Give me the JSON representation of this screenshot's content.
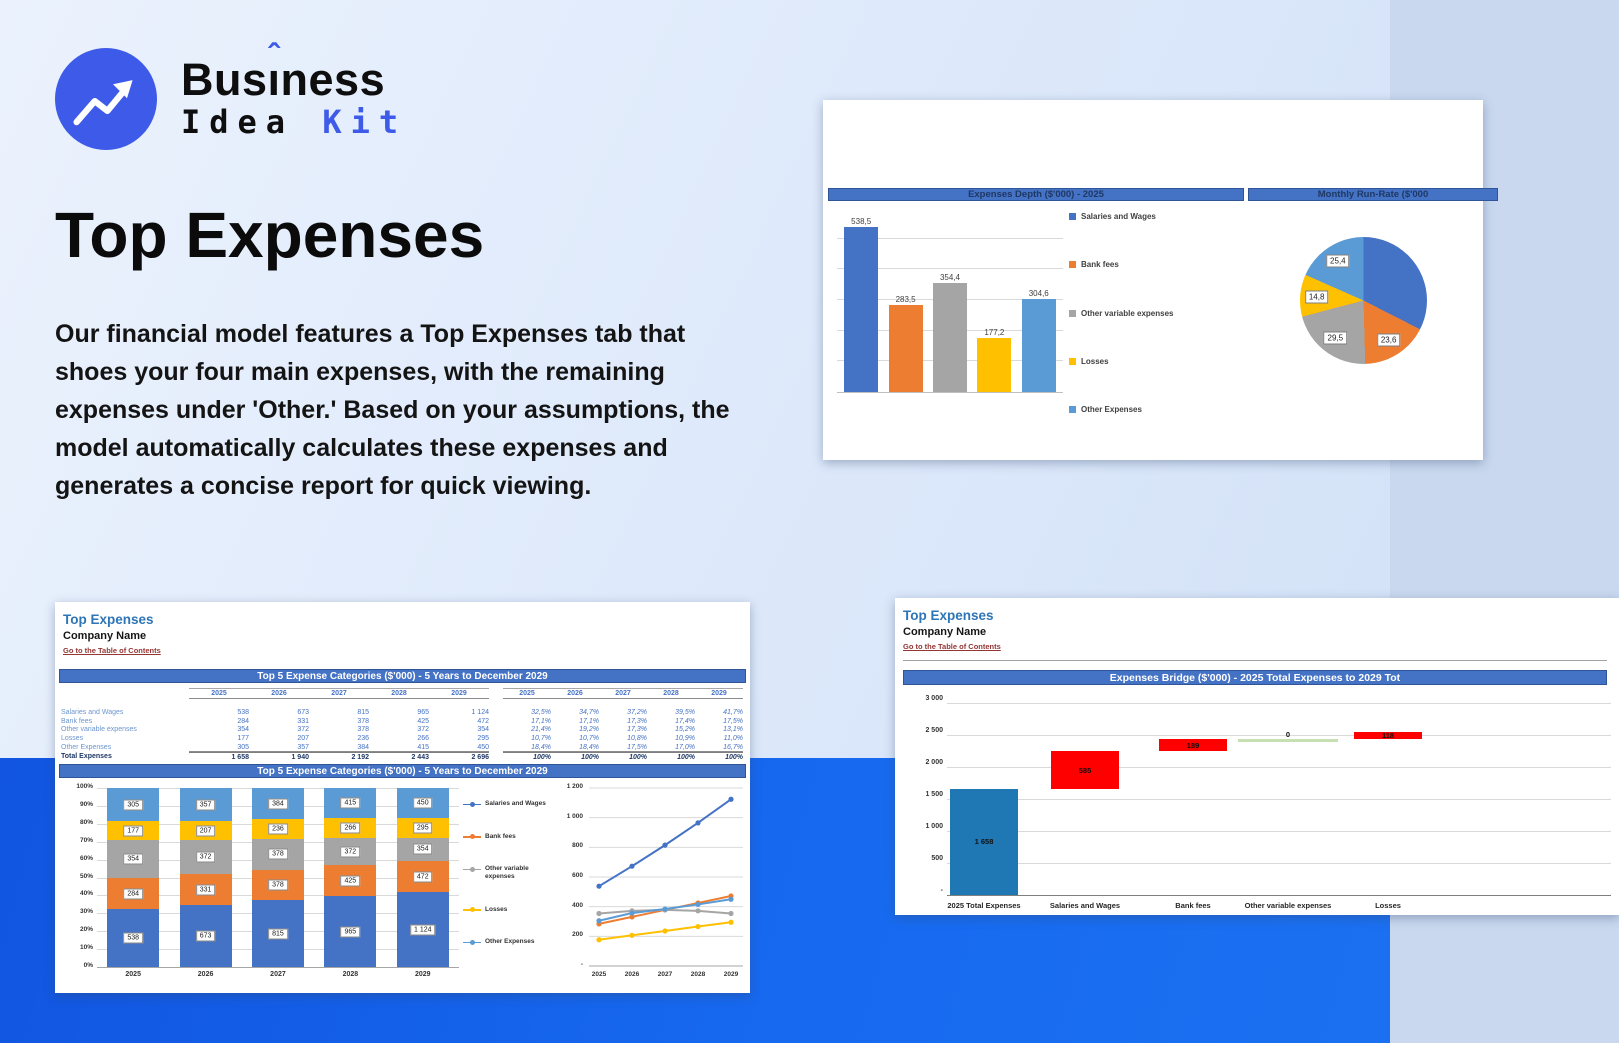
{
  "brand": {
    "part1": "Bus",
    "i_base": "ı",
    "caret": "ˆ",
    "part2": "ness",
    "line2_word1": "Idea ",
    "line2_word2": "Kit"
  },
  "hero": {
    "title": "Top Expenses",
    "paragraph": "Our financial model features a Top Expenses tab that shoes your four main expenses, with the remaining expenses under 'Other.' Based on your assumptions, the model automatically calculates these expenses and generates a concise report for quick viewing."
  },
  "sheet": {
    "title": "Top Expenses",
    "company": "Company Name",
    "link": "Go to the Table of Contents"
  },
  "cards": {
    "top_right": {
      "header_left": "Expenses Depth ($'000) - 2025",
      "header_right": "Monthly Run-Rate ($'000"
    },
    "bottom_left": {
      "header_table": "Top 5 Expense Categories ($'000) - 5 Years to December 2029",
      "header_chart": "Top 5 Expense Categories ($'000) - 5 Years to December 2029"
    },
    "bottom_right": {
      "header": "Expenses Bridge ($'000) - 2025 Total Expenses to 2029 Tot"
    }
  },
  "legend": [
    {
      "label": "Salaries and Wages",
      "color": "#4472C4"
    },
    {
      "label": "Bank fees",
      "color": "#ED7D31"
    },
    {
      "label": "Other variable expenses",
      "color": "#A5A5A5"
    },
    {
      "label": "Losses",
      "color": "#FFC000"
    },
    {
      "label": "Other Expenses",
      "color": "#5B9BD5"
    }
  ],
  "chart_data": [
    {
      "id": "expenses_depth_bar",
      "type": "bar",
      "title": "Expenses Depth ($'000) - 2025",
      "categories": [
        "Salaries and Wages",
        "Bank fees",
        "Other variable expenses",
        "Losses",
        "Other Expenses"
      ],
      "values": [
        538.5,
        283.5,
        354.4,
        177.2,
        304.6
      ],
      "labels": [
        "538,5",
        "283,5",
        "354,4",
        "177,2",
        "304,6"
      ],
      "colors": [
        "#4472C4",
        "#ED7D31",
        "#A5A5A5",
        "#FFC000",
        "#5B9BD5"
      ],
      "ylim": [
        0,
        600
      ],
      "grid_step": 100,
      "legend_position": "right"
    },
    {
      "id": "monthly_run_rate_pie",
      "type": "pie",
      "title": "Monthly Run-Rate ($'000",
      "slices": [
        {
          "label": "Salaries and Wages",
          "value": 44.9,
          "display": "",
          "color": "#4472C4"
        },
        {
          "label": "Bank fees",
          "value": 23.6,
          "display": "23,6",
          "color": "#ED7D31"
        },
        {
          "label": "Other variable expenses",
          "value": 29.5,
          "display": "29,5",
          "color": "#A5A5A5"
        },
        {
          "label": "Losses",
          "value": 14.8,
          "display": "14,8",
          "color": "#FFC000"
        },
        {
          "label": "Other Expenses",
          "value": 25.4,
          "display": "25,4",
          "color": "#5B9BD5"
        }
      ]
    },
    {
      "id": "top5_table",
      "type": "table",
      "title": "Top 5 Expense Categories ($'000) - 5 Years to December 2029",
      "years": [
        "2025",
        "2026",
        "2027",
        "2028",
        "2029"
      ],
      "rows": [
        {
          "label": "Salaries and Wages",
          "values": [
            "538",
            "673",
            "815",
            "965",
            "1 124"
          ],
          "pcts": [
            "32,5%",
            "34,7%",
            "37,2%",
            "39,5%",
            "41,7%"
          ]
        },
        {
          "label": "Bank fees",
          "values": [
            "284",
            "331",
            "378",
            "425",
            "472"
          ],
          "pcts": [
            "17,1%",
            "17,1%",
            "17,3%",
            "17,4%",
            "17,5%"
          ]
        },
        {
          "label": "Other variable expenses",
          "values": [
            "354",
            "372",
            "378",
            "372",
            "354"
          ],
          "pcts": [
            "21,4%",
            "19,2%",
            "17,3%",
            "15,2%",
            "13,1%"
          ]
        },
        {
          "label": "Losses",
          "values": [
            "177",
            "207",
            "236",
            "266",
            "295"
          ],
          "pcts": [
            "10,7%",
            "10,7%",
            "10,8%",
            "10,9%",
            "11,0%"
          ]
        },
        {
          "label": "Other Expenses",
          "values": [
            "305",
            "357",
            "384",
            "415",
            "450"
          ],
          "pcts": [
            "18,4%",
            "18,4%",
            "17,5%",
            "17,0%",
            "16,7%"
          ]
        }
      ],
      "total": {
        "label": "Total Expenses",
        "values": [
          "1 658",
          "1 940",
          "2 192",
          "2 443",
          "2 696"
        ],
        "pcts": [
          "100%",
          "100%",
          "100%",
          "100%",
          "100%"
        ]
      }
    },
    {
      "id": "top5_stacked",
      "type": "bar",
      "subtype": "stacked-100",
      "title": "Top 5 Expense Categories ($'000) - 5 Years to December 2029",
      "categories": [
        "2025",
        "2026",
        "2027",
        "2028",
        "2029"
      ],
      "y_ticks": [
        "100%",
        "90%",
        "80%",
        "70%",
        "60%",
        "50%",
        "40%",
        "30%",
        "20%",
        "10%",
        "0%"
      ],
      "series": [
        {
          "name": "Salaries and Wages",
          "color": "#4472C4",
          "values": [
            538,
            673,
            815,
            965,
            1124
          ],
          "labels": [
            "538",
            "673",
            "815",
            "965",
            "1 124"
          ]
        },
        {
          "name": "Bank fees",
          "color": "#ED7D31",
          "values": [
            284,
            331,
            378,
            425,
            472
          ],
          "labels": [
            "284",
            "331",
            "378",
            "425",
            "472"
          ]
        },
        {
          "name": "Other variable expenses",
          "color": "#A5A5A5",
          "values": [
            354,
            372,
            378,
            372,
            354
          ],
          "labels": [
            "354",
            "372",
            "378",
            "372",
            "354"
          ]
        },
        {
          "name": "Losses",
          "color": "#FFC000",
          "values": [
            177,
            207,
            236,
            266,
            295
          ],
          "labels": [
            "177",
            "207",
            "236",
            "266",
            "295"
          ]
        },
        {
          "name": "Other Expenses",
          "color": "#5B9BD5",
          "values": [
            305,
            357,
            384,
            415,
            450
          ],
          "labels": [
            "305",
            "357",
            "384",
            "415",
            "450"
          ]
        }
      ]
    },
    {
      "id": "top5_lines",
      "type": "line",
      "x": [
        "2025",
        "2026",
        "2027",
        "2028",
        "2029"
      ],
      "ylim": [
        0,
        1200
      ],
      "y_ticks": [
        "1 200",
        "1 000",
        "800",
        "600",
        "400",
        "200",
        "-"
      ],
      "series": [
        {
          "name": "Salaries and Wages",
          "color": "#4472C4",
          "values": [
            538,
            673,
            815,
            965,
            1124
          ]
        },
        {
          "name": "Bank fees",
          "color": "#ED7D31",
          "values": [
            284,
            331,
            378,
            425,
            472
          ]
        },
        {
          "name": "Other variable expenses",
          "color": "#A5A5A5",
          "values": [
            354,
            372,
            378,
            372,
            354
          ]
        },
        {
          "name": "Losses",
          "color": "#FFC000",
          "values": [
            177,
            207,
            236,
            266,
            295
          ]
        },
        {
          "name": "Other Expenses",
          "color": "#5B9BD5",
          "values": [
            305,
            357,
            384,
            415,
            450
          ]
        }
      ]
    },
    {
      "id": "expenses_bridge",
      "type": "bar",
      "subtype": "waterfall",
      "title": "Expenses Bridge ($'000) - 2025 Total Expenses to 2029 Tot",
      "categories": [
        "2025 Total Expenses",
        "Salaries and Wages",
        "Bank fees",
        "Other variable expenses",
        "Losses"
      ],
      "ylim": [
        0,
        3000
      ],
      "y_ticks": [
        "3 000",
        "2 500",
        "2 000",
        "1 500",
        "1 000",
        "500",
        "-"
      ],
      "bars": [
        {
          "label": "1 658",
          "start": 0,
          "end": 1658,
          "color": "#1F77B4",
          "wide": false
        },
        {
          "label": "585",
          "start": 1658,
          "end": 2243,
          "color": "#FF0000",
          "wide": false
        },
        {
          "label": "189",
          "start": 2243,
          "end": 2432,
          "color": "#FF0000",
          "wide": false
        },
        {
          "label": "0",
          "start": 2432,
          "end": 2432,
          "color": "#C6E0B4",
          "wide": true
        },
        {
          "label": "118",
          "start": 2432,
          "end": 2550,
          "color": "#FF0000",
          "wide": false
        }
      ]
    }
  ]
}
